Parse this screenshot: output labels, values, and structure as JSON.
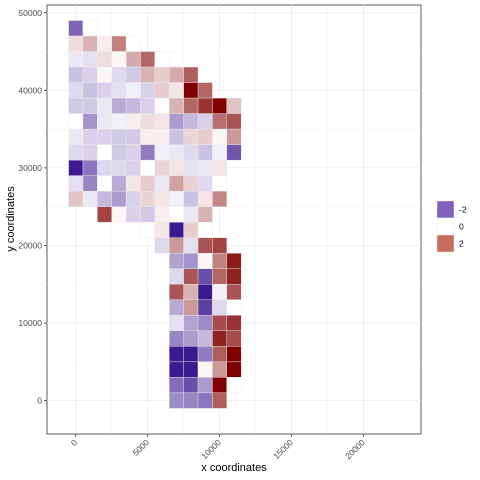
{
  "chart_data": {
    "type": "heatmap",
    "xlabel": "x coordinates",
    "ylabel": "y coordinates",
    "xlim": [
      -2000,
      24000
    ],
    "ylim": [
      -4300,
      51000
    ],
    "x_ticks": [
      0,
      5000,
      10000,
      15000,
      20000
    ],
    "x_tick_labels": [
      "0",
      "5000",
      "10000",
      "15000",
      "20000"
    ],
    "y_ticks": [
      0,
      10000,
      20000,
      30000,
      40000,
      50000
    ],
    "y_tick_labels": [
      "0",
      "10000",
      "20000",
      "30000",
      "40000",
      "50000"
    ],
    "grid": true,
    "legend": {
      "placement": "right",
      "entries": [
        {
          "label": "-2",
          "value": -2,
          "color": "#7e62bd"
        },
        {
          "label": "0",
          "value": 0,
          "color": "#ffffff"
        },
        {
          "label": "2",
          "value": 2,
          "color": "#c76b5c"
        }
      ]
    },
    "color_scale": {
      "low": "#3a1a8f",
      "mid": "#ffffff",
      "high": "#800000",
      "min": -3,
      "max": 3
    },
    "cell_width": 1000,
    "cell_height": 2000,
    "cells": [
      {
        "x": 0,
        "y": 48000,
        "v": -2
      },
      {
        "x": 1000,
        "y": 48000,
        "v": 0
      },
      {
        "x": 0,
        "y": 46000,
        "v": 0.4
      },
      {
        "x": 1000,
        "y": 46000,
        "v": 0.9
      },
      {
        "x": 2000,
        "y": 46000,
        "v": 0.2
      },
      {
        "x": 3000,
        "y": 46000,
        "v": 1.5
      },
      {
        "x": 4000,
        "y": 46000,
        "v": 0
      },
      {
        "x": 0,
        "y": 44000,
        "v": -0.3
      },
      {
        "x": 1000,
        "y": 44000,
        "v": -0.4
      },
      {
        "x": 2000,
        "y": 44000,
        "v": 0.4
      },
      {
        "x": 3000,
        "y": 44000,
        "v": 0.1
      },
      {
        "x": 4000,
        "y": 44000,
        "v": 1.0
      },
      {
        "x": 5000,
        "y": 44000,
        "v": 1.8
      },
      {
        "x": 6000,
        "y": 44000,
        "v": 0
      },
      {
        "x": 0,
        "y": 42000,
        "v": -0.8
      },
      {
        "x": 1000,
        "y": 42000,
        "v": -0.6
      },
      {
        "x": 2000,
        "y": 42000,
        "v": 0.1
      },
      {
        "x": 3000,
        "y": 42000,
        "v": -0.5
      },
      {
        "x": 4000,
        "y": 42000,
        "v": -0.7
      },
      {
        "x": 5000,
        "y": 42000,
        "v": 0.9
      },
      {
        "x": 6000,
        "y": 42000,
        "v": 0.6
      },
      {
        "x": 7000,
        "y": 42000,
        "v": 1.0
      },
      {
        "x": 8000,
        "y": 42000,
        "v": 1.9
      },
      {
        "x": 0,
        "y": 40000,
        "v": -0.5
      },
      {
        "x": 1000,
        "y": 40000,
        "v": -0.8
      },
      {
        "x": 2000,
        "y": 40000,
        "v": -0.6
      },
      {
        "x": 3000,
        "y": 40000,
        "v": -0.4
      },
      {
        "x": 4000,
        "y": 40000,
        "v": -0.2
      },
      {
        "x": 5000,
        "y": 40000,
        "v": -0.6
      },
      {
        "x": 6000,
        "y": 40000,
        "v": 0.6
      },
      {
        "x": 7000,
        "y": 40000,
        "v": 0.3
      },
      {
        "x": 8000,
        "y": 40000,
        "v": 3
      },
      {
        "x": 9000,
        "y": 40000,
        "v": 1.8
      },
      {
        "x": 0,
        "y": 38000,
        "v": -0.7
      },
      {
        "x": 1000,
        "y": 38000,
        "v": -0.7
      },
      {
        "x": 2000,
        "y": 38000,
        "v": -0.3
      },
      {
        "x": 3000,
        "y": 38000,
        "v": -1.1
      },
      {
        "x": 4000,
        "y": 38000,
        "v": -0.9
      },
      {
        "x": 5000,
        "y": 38000,
        "v": -0.6
      },
      {
        "x": 6000,
        "y": 38000,
        "v": 0
      },
      {
        "x": 7000,
        "y": 38000,
        "v": 0.9
      },
      {
        "x": 8000,
        "y": 38000,
        "v": 1.8
      },
      {
        "x": 9000,
        "y": 38000,
        "v": 2.4
      },
      {
        "x": 10000,
        "y": 38000,
        "v": 3
      },
      {
        "x": 11000,
        "y": 38000,
        "v": 0.7
      },
      {
        "x": 0,
        "y": 36000,
        "v": 0
      },
      {
        "x": 1000,
        "y": 36000,
        "v": -1.4
      },
      {
        "x": 2000,
        "y": 36000,
        "v": -0.3
      },
      {
        "x": 3000,
        "y": 36000,
        "v": -0.2
      },
      {
        "x": 4000,
        "y": 36000,
        "v": 0.2
      },
      {
        "x": 5000,
        "y": 36000,
        "v": 0.4
      },
      {
        "x": 6000,
        "y": 36000,
        "v": 0.3
      },
      {
        "x": 7000,
        "y": 36000,
        "v": -1.3
      },
      {
        "x": 8000,
        "y": 36000,
        "v": -0.9
      },
      {
        "x": 9000,
        "y": 36000,
        "v": -0.6
      },
      {
        "x": 10000,
        "y": 36000,
        "v": 1.7
      },
      {
        "x": 11000,
        "y": 36000,
        "v": 2.0
      },
      {
        "x": 0,
        "y": 34000,
        "v": -0.3
      },
      {
        "x": 1000,
        "y": 34000,
        "v": -0.6
      },
      {
        "x": 2000,
        "y": 34000,
        "v": -0.6
      },
      {
        "x": 3000,
        "y": 34000,
        "v": -0.7
      },
      {
        "x": 4000,
        "y": 34000,
        "v": -0.7
      },
      {
        "x": 5000,
        "y": 34000,
        "v": 0.2
      },
      {
        "x": 6000,
        "y": 34000,
        "v": 0.2
      },
      {
        "x": 7000,
        "y": 34000,
        "v": -0.8
      },
      {
        "x": 8000,
        "y": 34000,
        "v": 0.5
      },
      {
        "x": 9000,
        "y": 34000,
        "v": 0.6
      },
      {
        "x": 10000,
        "y": 34000,
        "v": 0.1
      },
      {
        "x": 11000,
        "y": 34000,
        "v": 1.2
      },
      {
        "x": 0,
        "y": 32000,
        "v": -0.5
      },
      {
        "x": 1000,
        "y": 32000,
        "v": -0.6
      },
      {
        "x": 2000,
        "y": 32000,
        "v": 0
      },
      {
        "x": 3000,
        "y": 32000,
        "v": -0.7
      },
      {
        "x": 4000,
        "y": 32000,
        "v": -0.6
      },
      {
        "x": 5000,
        "y": 32000,
        "v": -1.7
      },
      {
        "x": 6000,
        "y": 32000,
        "v": -0.2
      },
      {
        "x": 7000,
        "y": 32000,
        "v": -0.3
      },
      {
        "x": 8000,
        "y": 32000,
        "v": -0.5
      },
      {
        "x": 9000,
        "y": 32000,
        "v": -0.8
      },
      {
        "x": 10000,
        "y": 32000,
        "v": -0.2
      },
      {
        "x": 11000,
        "y": 32000,
        "v": -2.2
      },
      {
        "x": 0,
        "y": 30000,
        "v": -3
      },
      {
        "x": 1000,
        "y": 30000,
        "v": -1.8
      },
      {
        "x": 2000,
        "y": 30000,
        "v": -0.5
      },
      {
        "x": 3000,
        "y": 30000,
        "v": -0.5
      },
      {
        "x": 4000,
        "y": 30000,
        "v": -0.6
      },
      {
        "x": 5000,
        "y": 30000,
        "v": 0
      },
      {
        "x": 6000,
        "y": 30000,
        "v": 0.5
      },
      {
        "x": 7000,
        "y": 30000,
        "v": 0.3
      },
      {
        "x": 8000,
        "y": 30000,
        "v": -0.4
      },
      {
        "x": 9000,
        "y": 30000,
        "v": -0.3
      },
      {
        "x": 10000,
        "y": 30000,
        "v": 0.3
      },
      {
        "x": 0,
        "y": 28000,
        "v": -0.4
      },
      {
        "x": 1000,
        "y": 28000,
        "v": -1.6
      },
      {
        "x": 2000,
        "y": 28000,
        "v": 0
      },
      {
        "x": 3000,
        "y": 28000,
        "v": -1.1
      },
      {
        "x": 4000,
        "y": 28000,
        "v": 0.3
      },
      {
        "x": 5000,
        "y": 28000,
        "v": 0.6
      },
      {
        "x": 6000,
        "y": 28000,
        "v": -0.3
      },
      {
        "x": 7000,
        "y": 28000,
        "v": 1.1
      },
      {
        "x": 8000,
        "y": 28000,
        "v": 0.5
      },
      {
        "x": 9000,
        "y": 28000,
        "v": -0.5
      },
      {
        "x": 10000,
        "y": 28000,
        "v": 0
      },
      {
        "x": 0,
        "y": 26000,
        "v": 0.7
      },
      {
        "x": 1000,
        "y": 26000,
        "v": -0.3
      },
      {
        "x": 2000,
        "y": 26000,
        "v": -0.9
      },
      {
        "x": 3000,
        "y": 26000,
        "v": -1.3
      },
      {
        "x": 4000,
        "y": 26000,
        "v": -0.6
      },
      {
        "x": 5000,
        "y": 26000,
        "v": 0.5
      },
      {
        "x": 6000,
        "y": 26000,
        "v": 0.3
      },
      {
        "x": 7000,
        "y": 26000,
        "v": -0.2
      },
      {
        "x": 8000,
        "y": 26000,
        "v": -0.8
      },
      {
        "x": 9000,
        "y": 26000,
        "v": 0.3
      },
      {
        "x": 10000,
        "y": 26000,
        "v": 1.4
      },
      {
        "x": 2000,
        "y": 24000,
        "v": 2.2
      },
      {
        "x": 3000,
        "y": 24000,
        "v": 0.1
      },
      {
        "x": 4000,
        "y": 24000,
        "v": -0.6
      },
      {
        "x": 5000,
        "y": 24000,
        "v": -0.7
      },
      {
        "x": 6000,
        "y": 24000,
        "v": 0.2
      },
      {
        "x": 7000,
        "y": 24000,
        "v": 0
      },
      {
        "x": 8000,
        "y": 24000,
        "v": -0.3
      },
      {
        "x": 9000,
        "y": 24000,
        "v": 0.9
      },
      {
        "x": 5000,
        "y": 22000,
        "v": 0
      },
      {
        "x": 6000,
        "y": 22000,
        "v": 0.3
      },
      {
        "x": 7000,
        "y": 22000,
        "v": -3
      },
      {
        "x": 8000,
        "y": 22000,
        "v": 0.6
      },
      {
        "x": 9000,
        "y": 22000,
        "v": 0
      },
      {
        "x": 6000,
        "y": 20000,
        "v": -0.5
      },
      {
        "x": 7000,
        "y": 20000,
        "v": 1.2
      },
      {
        "x": 8000,
        "y": 20000,
        "v": -0.4
      },
      {
        "x": 9000,
        "y": 20000,
        "v": 2.0
      },
      {
        "x": 10000,
        "y": 20000,
        "v": 2.2
      },
      {
        "x": 7000,
        "y": 18000,
        "v": -1.2
      },
      {
        "x": 8000,
        "y": 18000,
        "v": -1.4
      },
      {
        "x": 9000,
        "y": 18000,
        "v": 0.1
      },
      {
        "x": 10000,
        "y": 18000,
        "v": 1.5
      },
      {
        "x": 11000,
        "y": 18000,
        "v": 2.7
      },
      {
        "x": 7000,
        "y": 16000,
        "v": -0.5
      },
      {
        "x": 8000,
        "y": 16000,
        "v": 2.0
      },
      {
        "x": 9000,
        "y": 16000,
        "v": -2.3
      },
      {
        "x": 10000,
        "y": 16000,
        "v": 1.8
      },
      {
        "x": 11000,
        "y": 16000,
        "v": 2.6
      },
      {
        "x": 7000,
        "y": 14000,
        "v": 2.0
      },
      {
        "x": 8000,
        "y": 14000,
        "v": 0.9
      },
      {
        "x": 9000,
        "y": 14000,
        "v": -3
      },
      {
        "x": 10000,
        "y": 14000,
        "v": -0.2
      },
      {
        "x": 11000,
        "y": 14000,
        "v": 2.0
      },
      {
        "x": 7000,
        "y": 12000,
        "v": -1.1
      },
      {
        "x": 8000,
        "y": 12000,
        "v": 1.2
      },
      {
        "x": 9000,
        "y": 12000,
        "v": -2.5
      },
      {
        "x": 10000,
        "y": 12000,
        "v": -0.5
      },
      {
        "x": 11000,
        "y": 12000,
        "v": 0
      },
      {
        "x": 7000,
        "y": 10000,
        "v": -0.4
      },
      {
        "x": 8000,
        "y": 10000,
        "v": -1.2
      },
      {
        "x": 9000,
        "y": 10000,
        "v": -1.5
      },
      {
        "x": 10000,
        "y": 10000,
        "v": 2.1
      },
      {
        "x": 11000,
        "y": 10000,
        "v": 2.4
      },
      {
        "x": 7000,
        "y": 8000,
        "v": -1.6
      },
      {
        "x": 8000,
        "y": 8000,
        "v": -1.3
      },
      {
        "x": 9000,
        "y": 8000,
        "v": -0.9
      },
      {
        "x": 10000,
        "y": 8000,
        "v": 2.6
      },
      {
        "x": 11000,
        "y": 8000,
        "v": 2.1
      },
      {
        "x": 7000,
        "y": 6000,
        "v": -3
      },
      {
        "x": 8000,
        "y": 6000,
        "v": -3
      },
      {
        "x": 9000,
        "y": 6000,
        "v": -1.7
      },
      {
        "x": 10000,
        "y": 6000,
        "v": 1.9
      },
      {
        "x": 11000,
        "y": 6000,
        "v": 3
      },
      {
        "x": 7000,
        "y": 4000,
        "v": -3
      },
      {
        "x": 8000,
        "y": 4000,
        "v": -3
      },
      {
        "x": 9000,
        "y": 4000,
        "v": 0.1
      },
      {
        "x": 10000,
        "y": 4000,
        "v": 1.2
      },
      {
        "x": 11000,
        "y": 4000,
        "v": 3
      },
      {
        "x": 7000,
        "y": 2000,
        "v": -1.9
      },
      {
        "x": 8000,
        "y": 2000,
        "v": -2.3
      },
      {
        "x": 9000,
        "y": 2000,
        "v": -1.3
      },
      {
        "x": 10000,
        "y": 2000,
        "v": 3
      },
      {
        "x": 11000,
        "y": 2000,
        "v": 0
      },
      {
        "x": 7000,
        "y": 0,
        "v": -1.5
      },
      {
        "x": 8000,
        "y": 0,
        "v": -1.6
      },
      {
        "x": 9000,
        "y": 0,
        "v": -1.8
      },
      {
        "x": 10000,
        "y": 0,
        "v": 1.9
      }
    ]
  }
}
